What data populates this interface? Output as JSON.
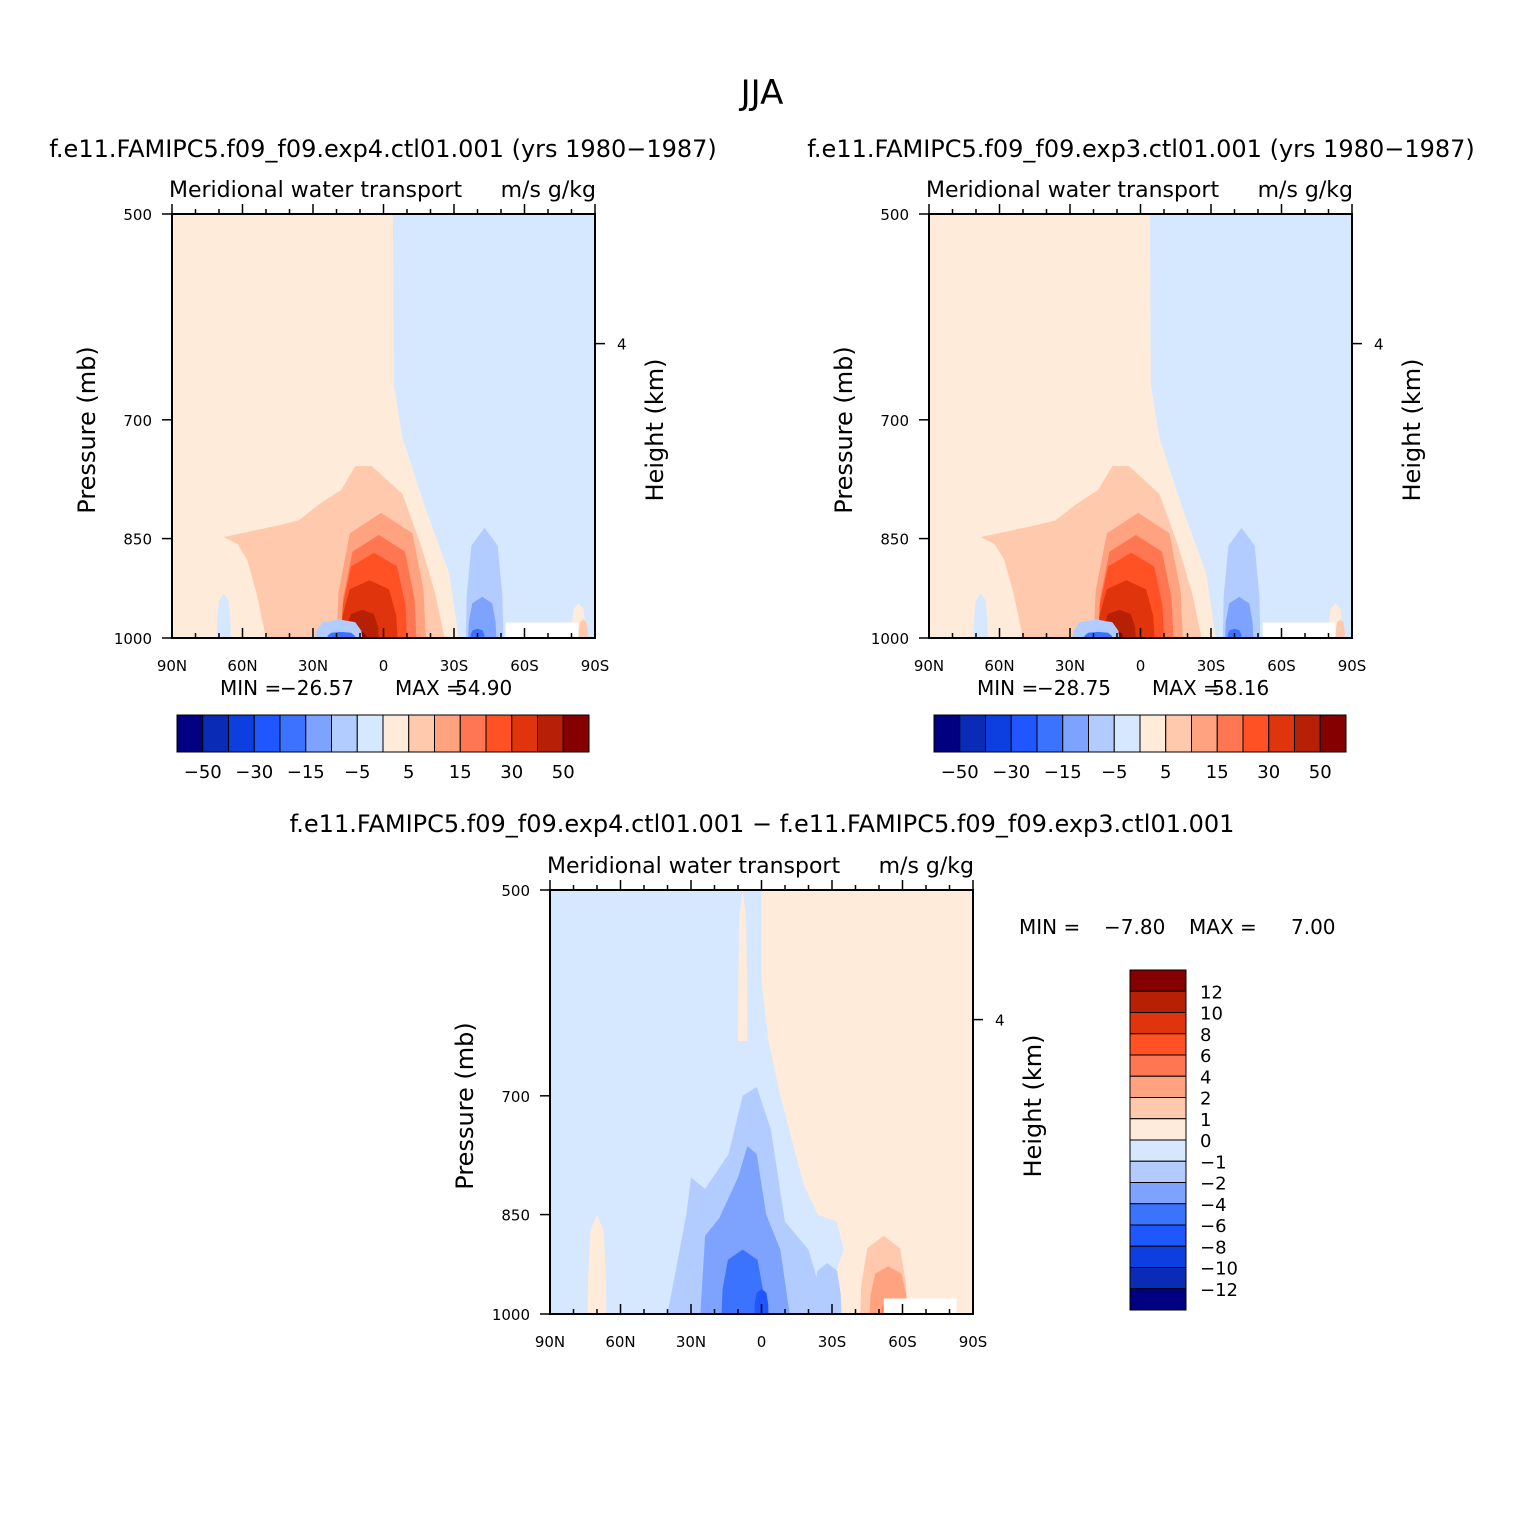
{
  "title": "JJA",
  "colors": {
    "levels": [
      "#000080",
      "#0a2bb5",
      "#0d3fe0",
      "#1f56ff",
      "#3b73ff",
      "#7da3ff",
      "#b3ccff",
      "#d6e8ff",
      "#ffebd9",
      "#ffc9ad",
      "#ffa27f",
      "#ff7752",
      "#ff5124",
      "#e0340d",
      "#b82006",
      "#850000"
    ]
  },
  "labels": {
    "panel_left_title": "Meridional water transport",
    "panel_right_title": "m/s g/kg",
    "ylabel": "Pressure (mb)",
    "ylabel_right": "Height (km)"
  },
  "chart_data": [
    {
      "type": "heatmap",
      "subtitle": "f.e11.FAMIPC5.f09_f09.exp4.ctl01.001 (yrs 1980−1987)",
      "xlabel": "",
      "ylabel": "Pressure (mb)",
      "x_ticks": [
        "90N",
        "60N",
        "30N",
        "0",
        "30S",
        "60S",
        "90S"
      ],
      "y_ticks": [
        "500",
        "700",
        "850",
        "1000"
      ],
      "y_right_ticks": [
        "4"
      ],
      "min_label": "MIN =",
      "min": "−26.57",
      "max_label": "MAX =",
      "max": "54.90",
      "colorbar_labels": [
        "−50",
        "−30",
        "−15",
        "−5",
        "5",
        "15",
        "30",
        "50"
      ]
    },
    {
      "type": "heatmap",
      "subtitle": "f.e11.FAMIPC5.f09_f09.exp3.ctl01.001 (yrs 1980−1987)",
      "xlabel": "",
      "ylabel": "Pressure (mb)",
      "x_ticks": [
        "90N",
        "60N",
        "30N",
        "0",
        "30S",
        "60S",
        "90S"
      ],
      "y_ticks": [
        "500",
        "700",
        "850",
        "1000"
      ],
      "y_right_ticks": [
        "4"
      ],
      "min_label": "MIN =",
      "min": "−28.75",
      "max_label": "MAX =",
      "max": "58.16",
      "colorbar_labels": [
        "−50",
        "−30",
        "−15",
        "−5",
        "5",
        "15",
        "30",
        "50"
      ]
    },
    {
      "type": "heatmap",
      "subtitle": "f.e11.FAMIPC5.f09_f09.exp4.ctl01.001 − f.e11.FAMIPC5.f09_f09.exp3.ctl01.001",
      "xlabel": "",
      "ylabel": "Pressure (mb)",
      "x_ticks": [
        "90N",
        "60N",
        "30N",
        "0",
        "30S",
        "60S",
        "90S"
      ],
      "y_ticks": [
        "500",
        "700",
        "850",
        "1000"
      ],
      "y_right_ticks": [
        "4"
      ],
      "min_label": "MIN =",
      "min": "−7.80",
      "max_label": "MAX =",
      "max": "7.00",
      "colorbar_labels": [
        "12",
        "10",
        "8",
        "6",
        "4",
        "2",
        "1",
        "0",
        "−1",
        "−2",
        "−4",
        "−6",
        "−8",
        "−10",
        "−12"
      ]
    }
  ]
}
